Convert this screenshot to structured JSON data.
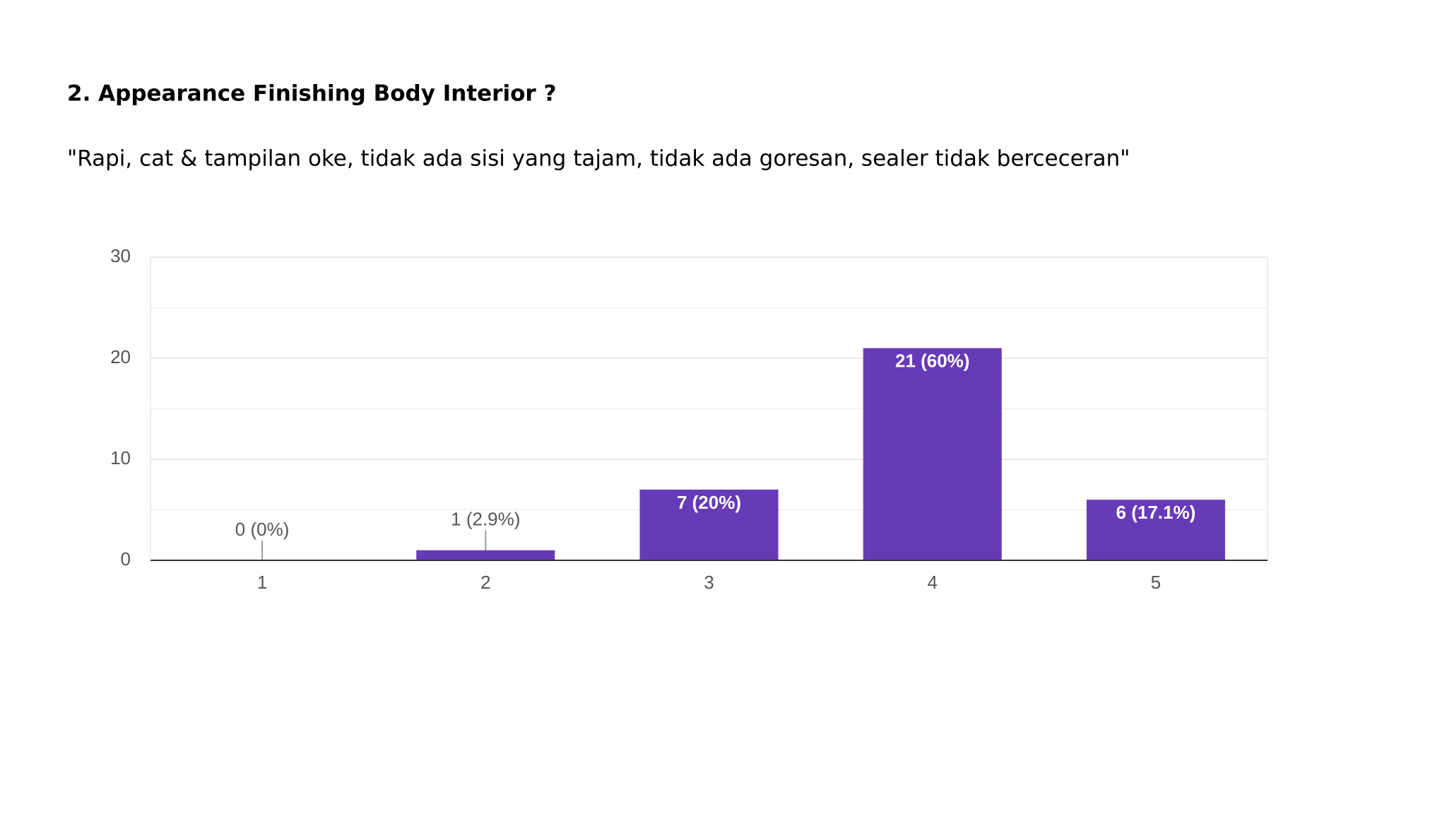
{
  "chart_data": {
    "type": "bar",
    "title": "2. Appearance Finishing Body Interior ?",
    "subtitle": "\"Rapi, cat & tampilan oke, tidak ada sisi yang tajam, tidak ada goresan, sealer tidak berceceran\"",
    "categories": [
      "1",
      "2",
      "3",
      "4",
      "5"
    ],
    "values": [
      0,
      1,
      7,
      21,
      6
    ],
    "value_labels": [
      "0 (0%)",
      "1 (2.9%)",
      "7 (20%)",
      "21 (60%)",
      "6 (17.1%)"
    ],
    "color": "#673ab7",
    "ylim": [
      0,
      30
    ],
    "yticks": [
      0,
      10,
      20,
      30
    ],
    "minor_yticks": [
      5,
      15,
      25
    ],
    "grid": true
  }
}
